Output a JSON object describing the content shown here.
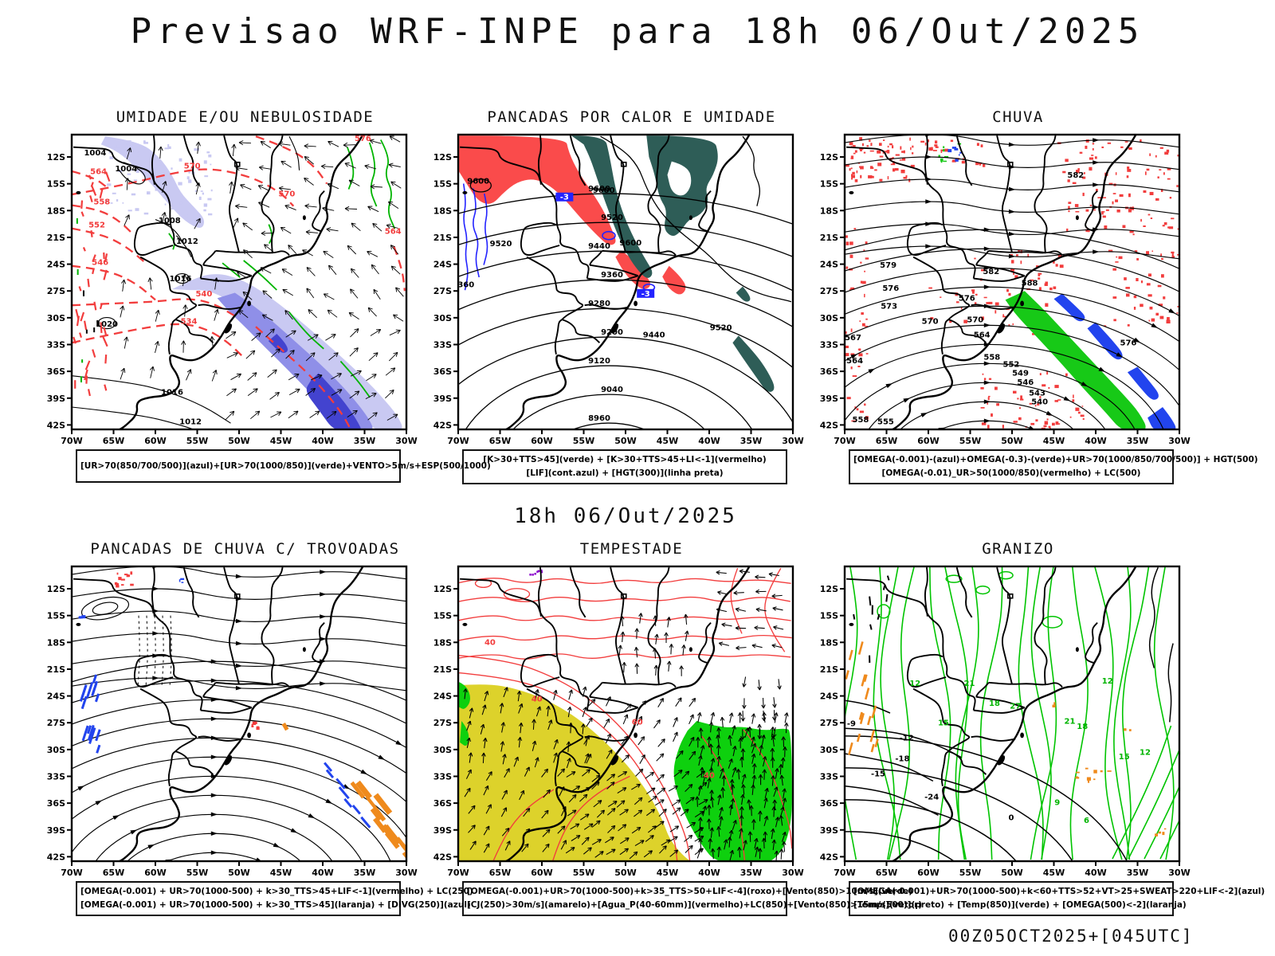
{
  "page": {
    "title": "Previsao WRF-INPE  para 18h 06/Out/2025",
    "subtitle": "18h 06/Out/2025",
    "footer": "00Z05OCT2025+[045UTC]"
  },
  "axes": {
    "lat_ticks": [
      "12S",
      "15S",
      "18S",
      "21S",
      "24S",
      "27S",
      "30S",
      "33S",
      "36S",
      "39S",
      "42S"
    ],
    "lon_ticks": [
      "70W",
      "65W",
      "60W",
      "55W",
      "50W",
      "45W",
      "40W",
      "35W",
      "30W"
    ]
  },
  "colors": {
    "red": "#f23d3d",
    "green": "#00b400",
    "bright_green": "#17c917",
    "vivid_green": "#0ed00e",
    "teal": "#2e5d57",
    "panel_red": "#fa4b4b",
    "blue": "#2323ff",
    "deep_blue": "#2244ee",
    "lavender": "#c9c9f2",
    "band_mid": "#8f8fe8",
    "band_dark": "#4343cf",
    "yellow": "#ddd22b",
    "orange": "#ef8a1c",
    "purple": "#8a00cc",
    "black": "#000000"
  },
  "panels": [
    {
      "id": "umidade",
      "title": "UMIDADE E/OU NEBULOSIDADE",
      "caption": [
        "[UR>70(850/700/500)](azul)+[UR>70(1000/850)](verde)+VENTO>5m/s+ESP(500/1000)"
      ],
      "labels": [
        "1004",
        "1008",
        "1012",
        "1016",
        "1020",
        "1016",
        "1012",
        "1004",
        "570",
        "564",
        "558",
        "552",
        "546",
        "540",
        "534",
        "570",
        "564",
        "576"
      ]
    },
    {
      "id": "calor",
      "title": "PANCADAS POR CALOR E UMIDADE",
      "caption": [
        "[K>30+TTS>45](verde) + [K>30+TTS>45+LI<-1](vermelho)",
        "[LIF](cont.azul) + [HGT(300)](linha preta)"
      ],
      "labels": [
        "9600",
        "9600",
        "9520",
        "9600",
        "9520",
        "9440",
        "9360",
        "-3",
        "-3"
      ],
      "contour_values": [
        "8960",
        "9040",
        "9120",
        "9200",
        "9280",
        "9360",
        "9440",
        "9520",
        "9600"
      ]
    },
    {
      "id": "chuva",
      "title": "CHUVA",
      "caption": [
        "[OMEGA(-0.001)-(azul)+OMEGA(-0.3)-(verde)+UR>70(1000/850/700/500)] + HGT(500)",
        "[OMEGA(-0.01)_UR>50(1000/850)(vermelho) + LC(500)"
      ],
      "labels": [
        "582",
        "579",
        "576",
        "573",
        "570",
        "567",
        "564",
        "558",
        "555",
        "582",
        "576",
        "570",
        "564",
        "558",
        "552",
        "549",
        "546",
        "543",
        "540",
        "576",
        "588"
      ]
    },
    {
      "id": "trovoadas",
      "title": "PANCADAS DE CHUVA C/ TROVOADAS",
      "caption": [
        "[OMEGA(-0.001) + UR>70(1000-500) + k>30_TTS>45+LIF<-1](vermelho) + LC(250)",
        "[OMEGA(-0.001) + UR>70(1000-500) + k>30_TTS>45](laranja) + [DIVG(250)](azul)"
      ],
      "labels": []
    },
    {
      "id": "tempestade",
      "title": "TEMPESTADE",
      "caption": [
        "[OMEGA(-0.001)+UR>70(1000-500)+k>35_TTS>50+LIF<-4](roxo)+[Vento(850)>10m/s](verde)",
        "[CJ(250)>30m/s](amarelo)+[Agua_P(40-60mm)](vermelho)+LC(850)+[Vento(850)>15m/s](vetor)"
      ],
      "labels": [
        "40",
        "40",
        "60",
        "40"
      ]
    },
    {
      "id": "granizo",
      "title": "GRANIZO",
      "caption": [
        "[OMEGA(-0.001)+UR>70(1000-500)+k<60+TTS>52+VT>25+SWEAT>220+LIF<-2](azul)",
        "[Temp(500)](preto) + [Temp(850)](verde) + [OMEGA(500)<-2](laranja)"
      ],
      "labels": [
        "12",
        "21",
        "18",
        "27",
        "15",
        "21",
        "18",
        "12",
        "15",
        "12",
        "9",
        "6",
        "-12",
        "-18",
        "-24",
        "-9",
        "0",
        "-15"
      ]
    }
  ]
}
